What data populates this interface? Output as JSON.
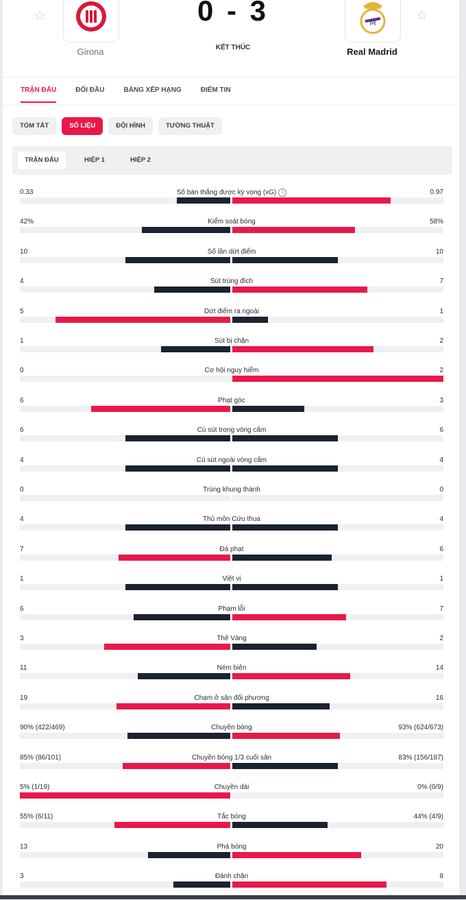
{
  "header": {
    "home": {
      "name": "Girona"
    },
    "away": {
      "name": "Real Madrid"
    },
    "score": "0 - 3",
    "status": "KẾT THÚC",
    "icons": {
      "favorite": "star-icon",
      "home_crest": "girona-crest",
      "away_crest": "real-madrid-crest"
    }
  },
  "main_tabs": [
    "TRẬN ĐẤU",
    "ĐỐI ĐẦU",
    "BẢNG XẾP HẠNG",
    "ĐIỂM TIN"
  ],
  "pills": [
    "TÓM TẮT",
    "SỐ LIỆU",
    "ĐỘI HÌNH",
    "TƯỜNG THUẬT"
  ],
  "sub_tabs": [
    "TRẬN ĐẤU",
    "HIỆP 1",
    "HIỆP 2"
  ],
  "colors": {
    "accent": "#e8194a",
    "dark": "#1b2330",
    "track": "#eef0f2"
  },
  "stats": [
    {
      "label": "Số bàn thắng được kỳ vọng (xG)",
      "home": "0.33",
      "away": "0.97",
      "hf": 0.254,
      "af": 0.75,
      "hc": "dark",
      "ac": "red",
      "info": true
    },
    {
      "label": "Kiểm soát bóng",
      "home": "42%",
      "away": "58%",
      "hf": 0.42,
      "af": 0.58,
      "hc": "dark",
      "ac": "red"
    },
    {
      "label": "Số lần dứt điểm",
      "home": "10",
      "away": "10",
      "hf": 0.5,
      "af": 0.5,
      "hc": "dark",
      "ac": "dark"
    },
    {
      "label": "Sút trúng đích",
      "home": "4",
      "away": "7",
      "hf": 0.36,
      "af": 0.64,
      "hc": "dark",
      "ac": "red"
    },
    {
      "label": "Dứt điểm ra ngoài",
      "home": "5",
      "away": "1",
      "hf": 0.83,
      "af": 0.17,
      "hc": "red",
      "ac": "dark"
    },
    {
      "label": "Sút bị chặn",
      "home": "1",
      "away": "2",
      "hf": 0.33,
      "af": 0.67,
      "hc": "dark",
      "ac": "red"
    },
    {
      "label": "Cơ hội nguy hiểm",
      "home": "0",
      "away": "2",
      "hf": 0.0,
      "af": 1.0,
      "hc": "dark",
      "ac": "red"
    },
    {
      "label": "Phạt góc",
      "home": "6",
      "away": "3",
      "hf": 0.66,
      "af": 0.34,
      "hc": "red",
      "ac": "dark"
    },
    {
      "label": "Cú sút trong vòng cấm",
      "home": "6",
      "away": "6",
      "hf": 0.5,
      "af": 0.5,
      "hc": "dark",
      "ac": "dark"
    },
    {
      "label": "Cú sút ngoài vòng cấm",
      "home": "4",
      "away": "4",
      "hf": 0.5,
      "af": 0.5,
      "hc": "dark",
      "ac": "dark"
    },
    {
      "label": "Trúng khung thành",
      "home": "0",
      "away": "0",
      "hf": 0.0,
      "af": 0.0,
      "hc": "dark",
      "ac": "dark"
    },
    {
      "label": "Thủ môn Cứu thua",
      "home": "4",
      "away": "4",
      "hf": 0.5,
      "af": 0.5,
      "hc": "dark",
      "ac": "dark"
    },
    {
      "label": "Đá phạt",
      "home": "7",
      "away": "6",
      "hf": 0.53,
      "af": 0.47,
      "hc": "red",
      "ac": "dark"
    },
    {
      "label": "Việt vị",
      "home": "1",
      "away": "1",
      "hf": 0.5,
      "af": 0.5,
      "hc": "dark",
      "ac": "dark"
    },
    {
      "label": "Phạm lỗi",
      "home": "6",
      "away": "7",
      "hf": 0.46,
      "af": 0.54,
      "hc": "dark",
      "ac": "red"
    },
    {
      "label": "Thẻ Vàng",
      "home": "3",
      "away": "2",
      "hf": 0.6,
      "af": 0.4,
      "hc": "red",
      "ac": "dark"
    },
    {
      "label": "Ném biên",
      "home": "11",
      "away": "14",
      "hf": 0.44,
      "af": 0.56,
      "hc": "dark",
      "ac": "red"
    },
    {
      "label": "Chạm ở sân đối phương",
      "home": "19",
      "away": "16",
      "hf": 0.54,
      "af": 0.46,
      "hc": "red",
      "ac": "dark"
    },
    {
      "label": "Chuyền bóng",
      "home": "90% (422/469)",
      "away": "93% (624/673)",
      "hf": 0.49,
      "af": 0.51,
      "hc": "dark",
      "ac": "red"
    },
    {
      "label": "Chuyền bóng 1/3 cuối sân",
      "home": "85% (86/101)",
      "away": "83% (156/187)",
      "hf": 0.51,
      "af": 0.5,
      "hc": "red",
      "ac": "dark"
    },
    {
      "label": "Chuyền dài",
      "home": "5% (1/19)",
      "away": "0% (0/9)",
      "hf": 1.0,
      "af": 0.0,
      "hc": "red",
      "ac": "dark"
    },
    {
      "label": "Tắc bóng",
      "home": "55% (6/11)",
      "away": "44% (4/9)",
      "hf": 0.55,
      "af": 0.45,
      "hc": "red",
      "ac": "dark"
    },
    {
      "label": "Phá bóng",
      "home": "13",
      "away": "20",
      "hf": 0.39,
      "af": 0.61,
      "hc": "dark",
      "ac": "red"
    },
    {
      "label": "Đánh chặn",
      "home": "3",
      "away": "8",
      "hf": 0.27,
      "af": 0.73,
      "hc": "dark",
      "ac": "red"
    }
  ]
}
